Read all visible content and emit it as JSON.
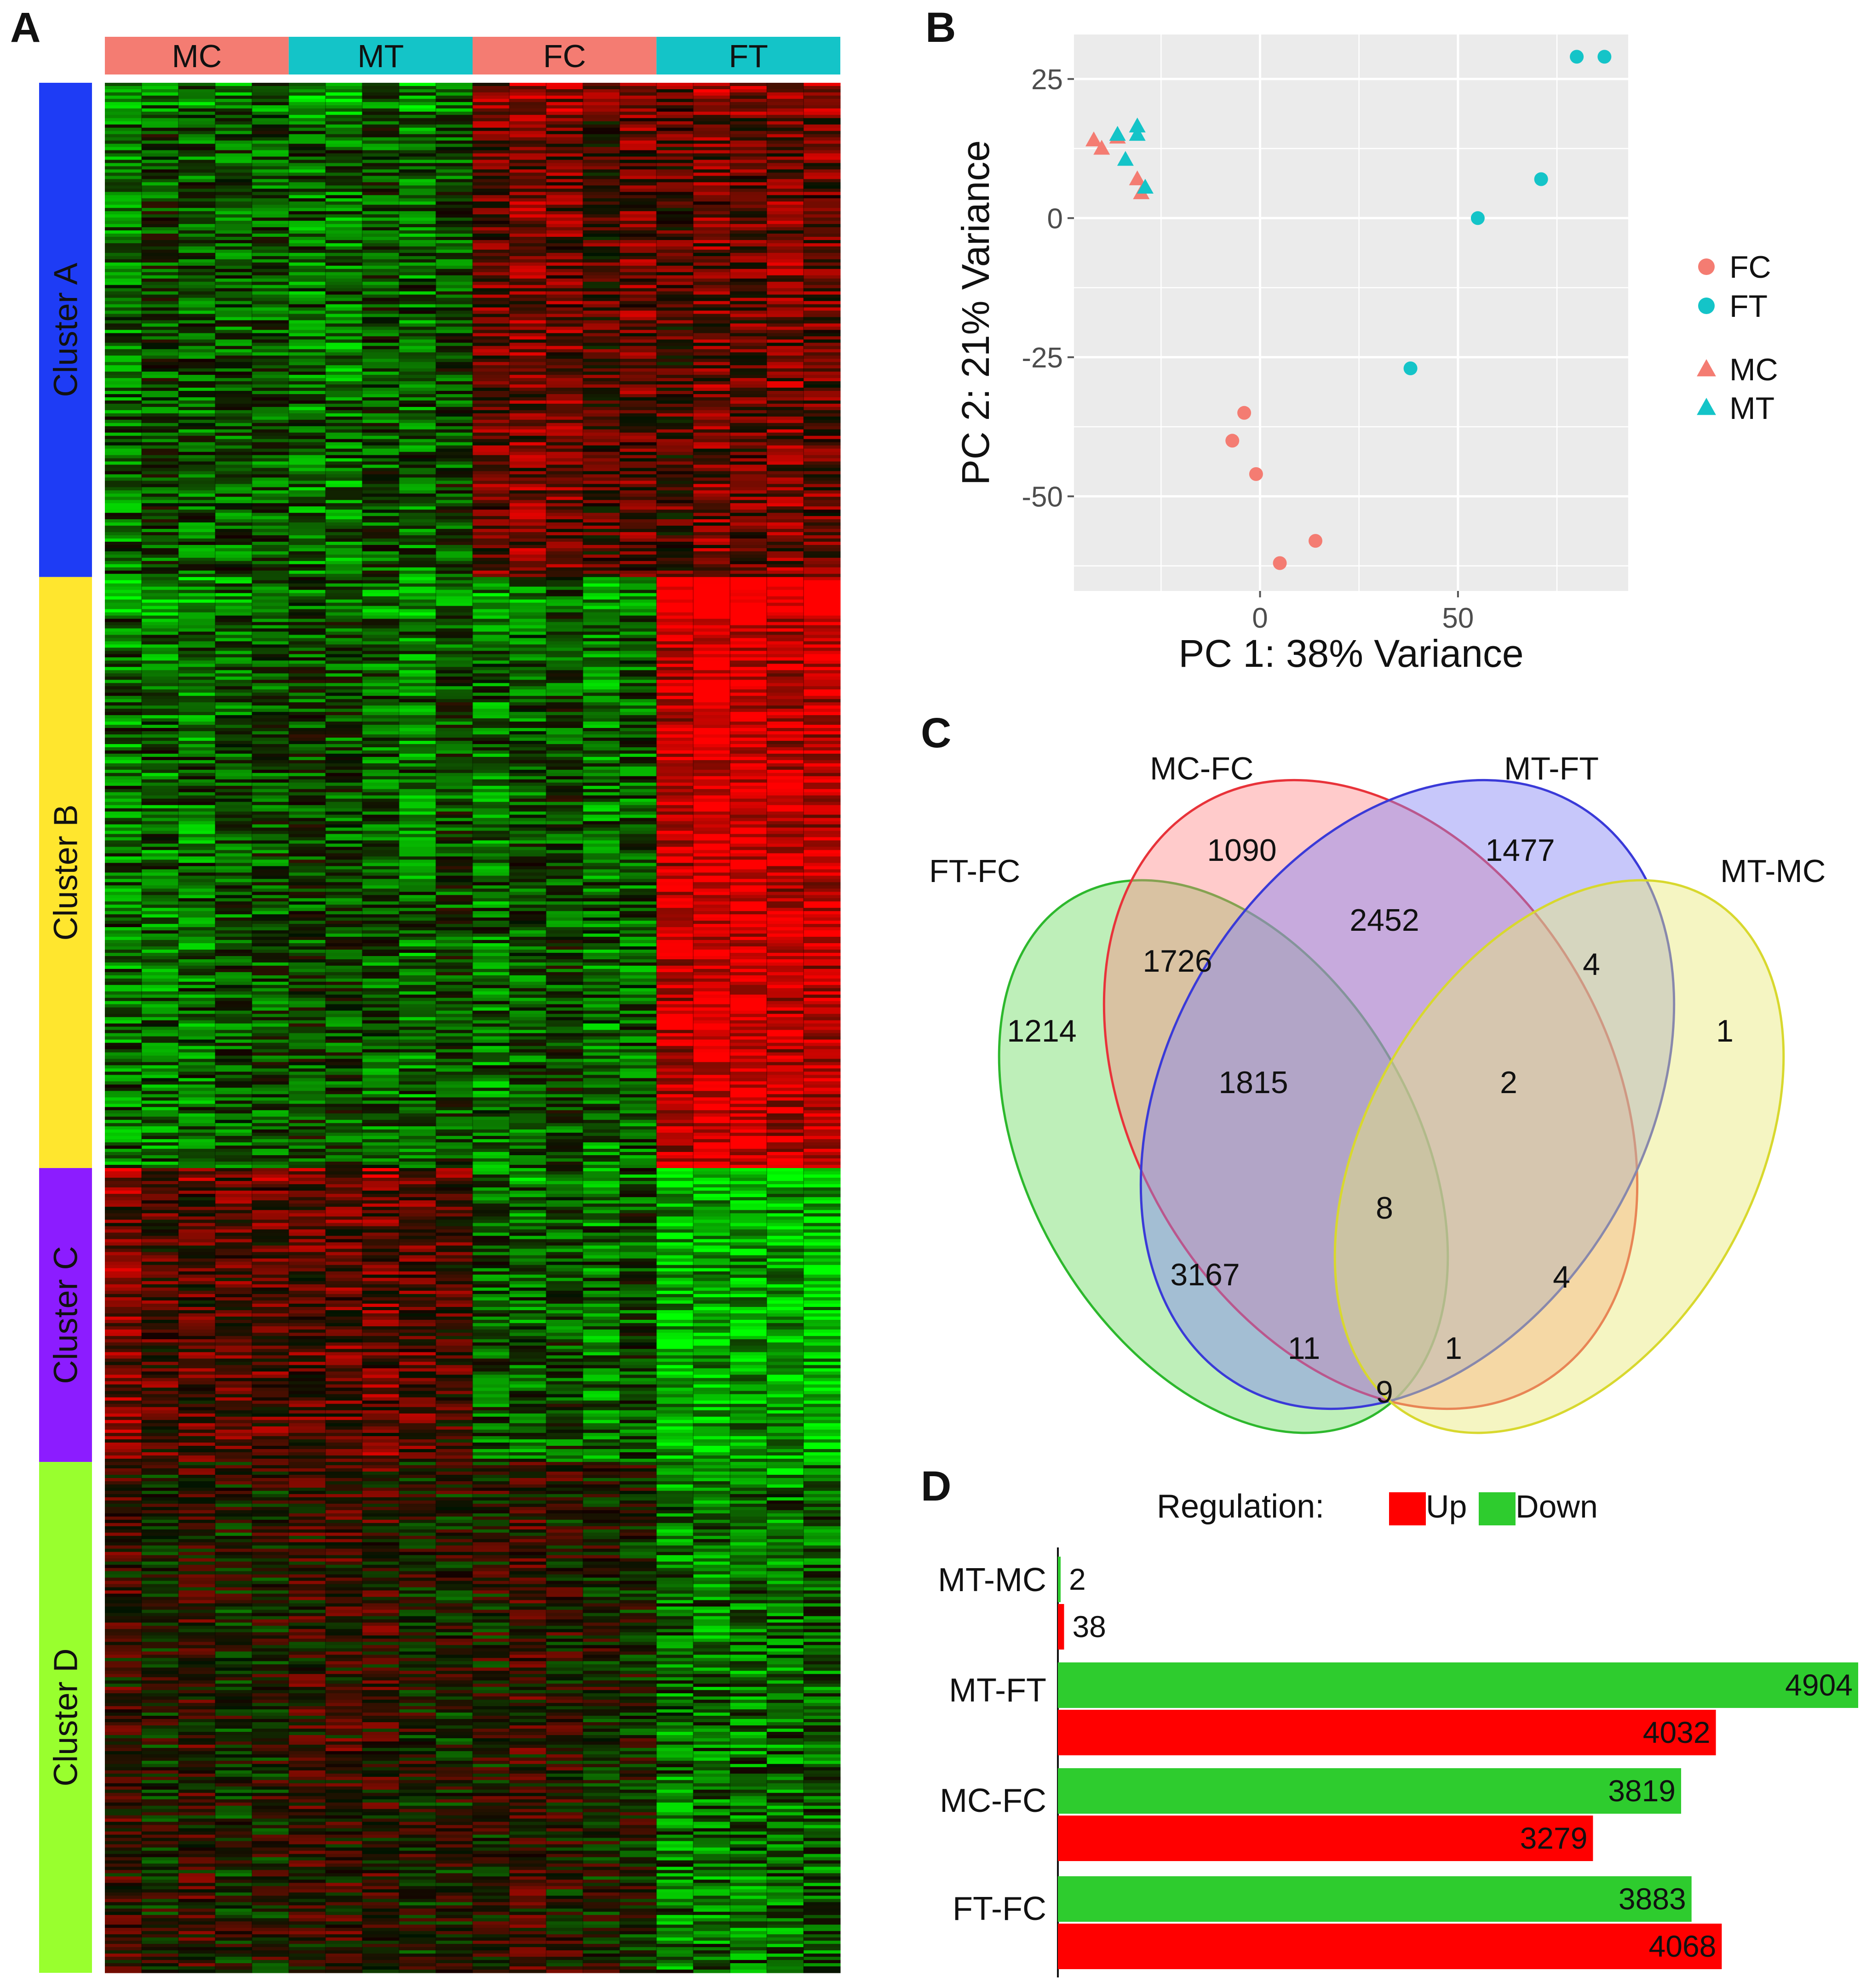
{
  "panels": {
    "a": "A",
    "b": "B",
    "c": "C",
    "d": "D"
  },
  "chart_data": [
    {
      "type": "heatmap",
      "panel": "A",
      "column_groups": [
        {
          "label": "MC",
          "color": "#F47C72"
        },
        {
          "label": "MT",
          "color": "#14C4C8"
        },
        {
          "label": "FC",
          "color": "#F47C72"
        },
        {
          "label": "FT",
          "color": "#14C4C8"
        }
      ],
      "samples_per_group": 5,
      "row_clusters": [
        {
          "label": "Cluster A",
          "color": "#1E3CF5",
          "pattern": [
            "low",
            "low",
            "high",
            "high"
          ],
          "weight": 0.2615
        },
        {
          "label": "Cluster B",
          "color": "#FFE62E",
          "pattern": [
            "low",
            "low",
            "low",
            "very-high"
          ],
          "weight": 0.3127
        },
        {
          "label": "Cluster C",
          "color": "#8C1CFF",
          "pattern": [
            "high",
            "high",
            "low",
            "very-low"
          ],
          "weight": 0.1555
        },
        {
          "label": "Cluster D",
          "color": "#99FF2E",
          "pattern": [
            "mixed",
            "mixed",
            "mixed",
            "low"
          ],
          "weight": 0.2703
        }
      ],
      "colors": {
        "high": "#FF0000",
        "mid": "#000000",
        "low": "#00FF00"
      }
    },
    {
      "type": "scatter",
      "panel": "B",
      "xlabel": "PC 1: 38% Variance",
      "ylabel": "PC 2: 21% Variance",
      "xlim": [
        -47,
        93
      ],
      "ylim": [
        -67,
        33
      ],
      "xticks": [
        0,
        50
      ],
      "yticks": [
        25,
        0,
        -25,
        -50
      ],
      "grid": true,
      "legend_position": "right",
      "legend": [
        {
          "label": "FC",
          "color": "#F47C72",
          "shape": "circle"
        },
        {
          "label": "FT",
          "color": "#14C4C8",
          "shape": "circle"
        },
        {
          "label": "MC",
          "color": "#F47C72",
          "shape": "triangle"
        },
        {
          "label": "MT",
          "color": "#14C4C8",
          "shape": "triangle"
        }
      ],
      "series": [
        {
          "name": "FC",
          "shape": "circle",
          "color": "#F47C72",
          "points": [
            [
              -4,
              -35
            ],
            [
              -7,
              -40
            ],
            [
              -1,
              -46
            ],
            [
              5,
              -62
            ],
            [
              14,
              -58
            ]
          ]
        },
        {
          "name": "FT",
          "shape": "circle",
          "color": "#14C4C8",
          "points": [
            [
              80,
              29
            ],
            [
              87,
              29
            ],
            [
              71,
              7
            ],
            [
              55,
              0
            ],
            [
              38,
              -27
            ]
          ]
        },
        {
          "name": "MC",
          "shape": "triangle",
          "color": "#F47C72",
          "points": [
            [
              -42,
              14
            ],
            [
              -40,
              12.5
            ],
            [
              -36,
              14.5
            ],
            [
              -31,
              7
            ],
            [
              -30,
              4.5
            ]
          ]
        },
        {
          "name": "MT",
          "shape": "triangle",
          "color": "#14C4C8",
          "points": [
            [
              -36,
              15
            ],
            [
              -31,
              16.5
            ],
            [
              -31,
              15
            ],
            [
              -34,
              10.5
            ],
            [
              -29,
              5.5
            ]
          ]
        }
      ]
    },
    {
      "type": "venn",
      "panel": "C",
      "sets": [
        {
          "label": "FT-FC",
          "color": "#2DB82D"
        },
        {
          "label": "MC-FC",
          "color": "#E8333A"
        },
        {
          "label": "MT-FT",
          "color": "#3A3AD8"
        },
        {
          "label": "MT-MC",
          "color": "#D8D82E"
        }
      ],
      "regions": [
        {
          "sets": "FT-FC only",
          "value": "1214"
        },
        {
          "sets": "MC-FC only",
          "value": "1090"
        },
        {
          "sets": "MT-FT only",
          "value": "1477"
        },
        {
          "sets": "MT-MC only",
          "value": "1"
        },
        {
          "sets": "FT-FC & MC-FC",
          "value": "1726"
        },
        {
          "sets": "MC-FC & MT-FT",
          "value": "2452"
        },
        {
          "sets": "MT-FT & MT-MC",
          "value": "4"
        },
        {
          "sets": "FT-FC & MC-FC & MT-FT",
          "value": "1815"
        },
        {
          "sets": "MC-FC & MT-FT & MT-MC",
          "value": "2"
        },
        {
          "sets": "all four",
          "value": "8"
        },
        {
          "sets": "FT-FC & MT-FT",
          "value": "3167"
        },
        {
          "sets": "MC-FC & MT-MC",
          "value": "4"
        },
        {
          "sets": "FT-FC & MT-FT & MT-MC",
          "value": "11"
        },
        {
          "sets": "FT-FC & MC-FC & MT-MC",
          "value": "1"
        },
        {
          "sets": "FT-FC & MT-MC",
          "value": "9"
        }
      ]
    },
    {
      "type": "bar",
      "panel": "D",
      "orientation": "horizontal",
      "legend_title": "Regulation:",
      "legend_position": "top",
      "legend": [
        {
          "label": "Up",
          "color": "#FF0000"
        },
        {
          "label": "Down",
          "color": "#2ECC2E"
        }
      ],
      "categories": [
        "MT-MC",
        "MT-FT",
        "MC-FC",
        "FT-FC"
      ],
      "series": [
        {
          "name": "Down",
          "color": "#2ECC2E",
          "values": [
            2,
            4904,
            3819,
            3883
          ]
        },
        {
          "name": "Up",
          "color": "#FF0000",
          "values": [
            38,
            4032,
            3279,
            4068
          ]
        }
      ],
      "xlim": [
        0,
        4904
      ]
    }
  ]
}
